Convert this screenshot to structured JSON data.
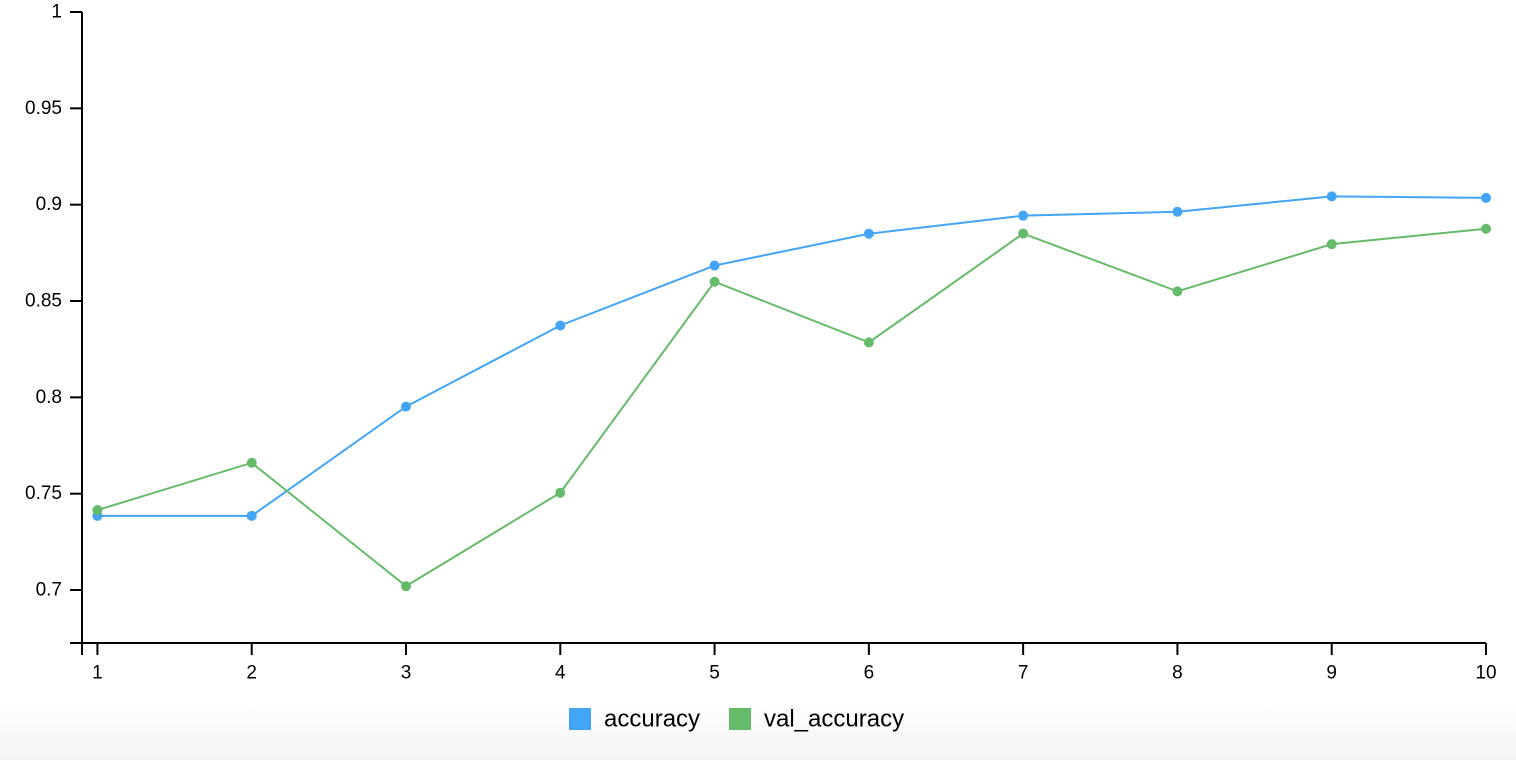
{
  "chart_data": {
    "type": "line",
    "x": [
      1,
      2,
      3,
      4,
      5,
      6,
      7,
      8,
      9,
      10
    ],
    "series": [
      {
        "name": "accuracy",
        "color": "#42a5f5",
        "values": [
          0.7385,
          0.7385,
          0.7952,
          0.8373,
          0.8684,
          0.8849,
          0.8943,
          0.8963,
          0.9043,
          0.9035
        ]
      },
      {
        "name": "val_accuracy",
        "color": "#66bb6a",
        "values": [
          0.7415,
          0.766,
          0.702,
          0.7505,
          0.86,
          0.8285,
          0.885,
          0.855,
          0.8795,
          0.8875
        ]
      }
    ],
    "xticks": [
      "1",
      "2",
      "3",
      "4",
      "5",
      "6",
      "7",
      "8",
      "9",
      "10"
    ],
    "yticks": [
      "0.7",
      "0.75",
      "0.8",
      "0.85",
      "0.9",
      "0.95",
      "1"
    ],
    "ytick_values": [
      0.7,
      0.75,
      0.8,
      0.85,
      0.9,
      0.95,
      1
    ],
    "xlim": [
      0.9,
      10
    ],
    "ylim": [
      0.6725,
      1
    ],
    "grid": false,
    "legend_position": "bottom-center"
  }
}
